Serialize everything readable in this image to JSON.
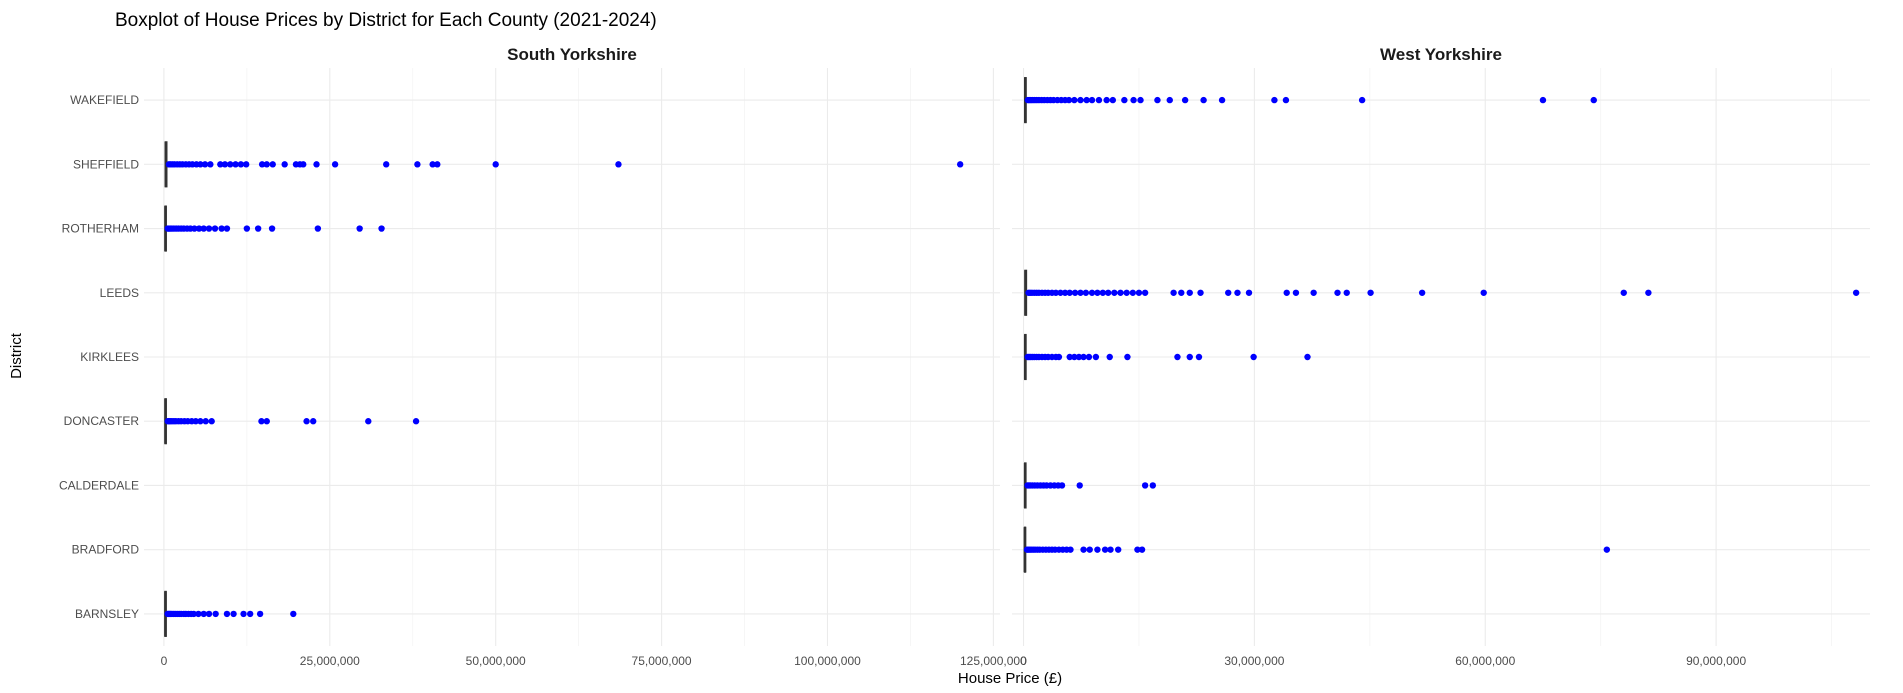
{
  "chart_data": {
    "type": "boxplot",
    "title": "Boxplot of House Prices by District for Each County (2021-2024)",
    "xlabel": "House Price (£)",
    "ylabel": "District",
    "categories": [
      "BARNSLEY",
      "BRADFORD",
      "CALDERDALE",
      "DONCASTER",
      "KIRKLEES",
      "LEEDS",
      "ROTHERHAM",
      "SHEFFIELD",
      "WAKEFIELD"
    ],
    "point_color": "#0000ff",
    "box_color": "#333333",
    "facets": [
      {
        "name": "South Yorkshire",
        "xlim": [
          -3000000,
          126000000
        ],
        "ticks": [
          0,
          25000000,
          50000000,
          75000000,
          100000000,
          125000000
        ],
        "tick_labels": [
          "0",
          "25,000,000",
          "50,000,000",
          "75,000,000",
          "100,000,000",
          "125,000,000"
        ],
        "series": [
          {
            "name": "BARNSLEY",
            "box": [
              150000,
              230000,
              350000
            ],
            "outliers": [
              560000,
              700000,
              850000,
              1000000,
              1200000,
              1450000,
              1700000,
              2000000,
              2300000,
              2600000,
              3000000,
              3300000,
              3700000,
              4100000,
              4500000,
              5200000,
              6000000,
              6800000,
              7800000,
              9500000,
              10500000,
              12000000,
              13000000,
              14500000,
              19500000
            ]
          },
          {
            "name": "BRADFORD",
            "box": null,
            "outliers": []
          },
          {
            "name": "CALDERDALE",
            "box": null,
            "outliers": []
          },
          {
            "name": "DONCASTER",
            "box": [
              160000,
              240000,
              360000
            ],
            "outliers": [
              580000,
              750000,
              950000,
              1200000,
              1500000,
              1800000,
              2200000,
              2600000,
              3100000,
              3600000,
              4200000,
              4800000,
              5500000,
              6300000,
              7200000,
              14700000,
              15500000,
              21500000,
              22500000,
              30800000,
              38000000
            ]
          },
          {
            "name": "KIRKLEES",
            "box": null,
            "outliers": []
          },
          {
            "name": "LEEDS",
            "box": null,
            "outliers": []
          },
          {
            "name": "ROTHERHAM",
            "box": [
              160000,
              240000,
              360000
            ],
            "outliers": [
              580000,
              750000,
              950000,
              1200000,
              1500000,
              1850000,
              2200000,
              2600000,
              3000000,
              3500000,
              4000000,
              4600000,
              5300000,
              6000000,
              6800000,
              7700000,
              8700000,
              9500000,
              12500000,
              14200000,
              16300000,
              23200000,
              29500000,
              32800000
            ]
          },
          {
            "name": "SHEFFIELD",
            "box": [
              200000,
              300000,
              450000
            ],
            "outliers": [
              750000,
              1000000,
              1300000,
              1600000,
              2000000,
              2400000,
              2800000,
              3300000,
              3800000,
              4300000,
              4900000,
              5500000,
              6200000,
              7000000,
              8500000,
              9200000,
              10000000,
              10800000,
              11600000,
              12400000,
              14800000,
              15500000,
              16400000,
              18200000,
              19900000,
              20500000,
              21000000,
              23000000,
              25800000,
              33500000,
              38200000,
              40500000,
              41200000,
              50000000,
              68500000,
              120000000
            ]
          },
          {
            "name": "WAKEFIELD",
            "box": null,
            "outliers": []
          }
        ]
      },
      {
        "name": "West Yorkshire",
        "xlim": [
          -1500000,
          110000000
        ],
        "ticks": [
          0,
          30000000,
          60000000,
          90000000
        ],
        "tick_labels": [
          "0",
          "30,000,000",
          "60,000,000",
          "90,000,000"
        ],
        "series": [
          {
            "name": "BARNSLEY",
            "box": null,
            "outliers": []
          },
          {
            "name": "BRADFORD",
            "box": [
              120000,
              180000,
              270000
            ],
            "outliers": [
              450000,
              600000,
              800000,
              1000000,
              1250000,
              1500000,
              1800000,
              2100000,
              2500000,
              2900000,
              3300000,
              3700000,
              4100000,
              4600000,
              5100000,
              5600000,
              6100000,
              7800000,
              8600000,
              9600000,
              10600000,
              11300000,
              12300000,
              14800000,
              15400000,
              75800000
            ]
          },
          {
            "name": "CALDERDALE",
            "box": [
              140000,
              210000,
              320000
            ],
            "outliers": [
              520000,
              700000,
              900000,
              1150000,
              1450000,
              1800000,
              2200000,
              2600000,
              3000000,
              3500000,
              4000000,
              4500000,
              5000000,
              7300000,
              15800000,
              16800000
            ]
          },
          {
            "name": "DONCASTER",
            "box": null,
            "outliers": []
          },
          {
            "name": "KIRKLEES",
            "box": [
              150000,
              220000,
              330000
            ],
            "outliers": [
              540000,
              720000,
              920000,
              1150000,
              1400000,
              1700000,
              2000000,
              2400000,
              2800000,
              3200000,
              3700000,
              4200000,
              4600000,
              6000000,
              6600000,
              7200000,
              7800000,
              8500000,
              9400000,
              11200000,
              13500000,
              20000000,
              21600000,
              22800000,
              29900000,
              36900000
            ]
          },
          {
            "name": "LEEDS",
            "box": [
              170000,
              260000,
              390000
            ],
            "outliers": [
              650000,
              850000,
              1100000,
              1400000,
              1700000,
              2000000,
              2400000,
              2800000,
              3200000,
              3700000,
              4200000,
              4800000,
              5400000,
              6000000,
              6700000,
              7400000,
              8100000,
              8900000,
              9600000,
              10300000,
              11000000,
              11800000,
              12600000,
              13400000,
              14200000,
              15000000,
              15800000,
              19500000,
              20500000,
              21600000,
              23000000,
              26600000,
              27800000,
              29300000,
              34200000,
              35400000,
              37700000,
              40800000,
              42000000,
              45100000,
              51800000,
              59800000,
              78000000,
              81200000,
              108200000
            ]
          },
          {
            "name": "ROTHERHAM",
            "box": null,
            "outliers": []
          },
          {
            "name": "SHEFFIELD",
            "box": null,
            "outliers": []
          },
          {
            "name": "WAKEFIELD",
            "box": [
              150000,
              230000,
              340000
            ],
            "outliers": [
              560000,
              740000,
              940000,
              1160000,
              1420000,
              1700000,
              2000000,
              2350000,
              2700000,
              3100000,
              3500000,
              3900000,
              4400000,
              4900000,
              5400000,
              5900000,
              6600000,
              7400000,
              8200000,
              8900000,
              9800000,
              10800000,
              11600000,
              13100000,
              14300000,
              15200000,
              17400000,
              19000000,
              21000000,
              23400000,
              25800000,
              32600000,
              34100000,
              44000000,
              67500000,
              74100000
            ]
          }
        ]
      }
    ]
  }
}
